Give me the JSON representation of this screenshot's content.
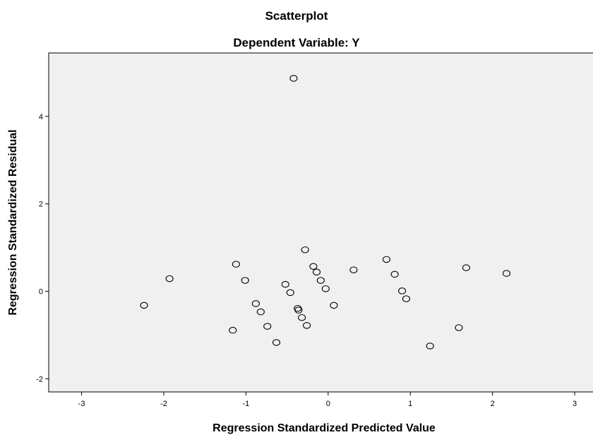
{
  "chart_data": {
    "type": "scatter",
    "title": "Scatterplot",
    "subtitle": "Dependent Variable: Y",
    "xlabel": "Regression Standardized Predicted Value",
    "ylabel": "Regression Standardized Residual",
    "xlim": [
      -3.4,
      3.3
    ],
    "ylim": [
      -2.3,
      5.45
    ],
    "xticks": [
      -3,
      -2,
      -1,
      0,
      1,
      2,
      3
    ],
    "yticks": [
      -2,
      0,
      2,
      4
    ],
    "grid": false,
    "background_color": "#f0f0f0",
    "marker": "hollow-circle",
    "points": [
      {
        "x": -0.42,
        "y": 4.87
      },
      {
        "x": -0.28,
        "y": 0.95
      },
      {
        "x": -1.12,
        "y": 0.62
      },
      {
        "x": 0.71,
        "y": 0.73
      },
      {
        "x": 1.68,
        "y": 0.54
      },
      {
        "x": -0.18,
        "y": 0.57
      },
      {
        "x": -0.14,
        "y": 0.44
      },
      {
        "x": 0.31,
        "y": 0.49
      },
      {
        "x": 0.81,
        "y": 0.39
      },
      {
        "x": 2.17,
        "y": 0.41
      },
      {
        "x": -1.93,
        "y": 0.29
      },
      {
        "x": -1.01,
        "y": 0.25
      },
      {
        "x": -0.09,
        "y": 0.25
      },
      {
        "x": -0.52,
        "y": 0.16
      },
      {
        "x": -0.03,
        "y": 0.06
      },
      {
        "x": -0.46,
        "y": -0.03
      },
      {
        "x": 0.9,
        "y": 0.01
      },
      {
        "x": 0.95,
        "y": -0.17
      },
      {
        "x": -2.24,
        "y": -0.32
      },
      {
        "x": -0.88,
        "y": -0.28
      },
      {
        "x": 0.07,
        "y": -0.32
      },
      {
        "x": -0.82,
        "y": -0.47
      },
      {
        "x": -0.37,
        "y": -0.39
      },
      {
        "x": -0.36,
        "y": -0.43
      },
      {
        "x": -0.32,
        "y": -0.6
      },
      {
        "x": -0.74,
        "y": -0.8
      },
      {
        "x": -0.26,
        "y": -0.78
      },
      {
        "x": 1.59,
        "y": -0.83
      },
      {
        "x": -1.16,
        "y": -0.89
      },
      {
        "x": -0.63,
        "y": -1.17
      },
      {
        "x": 1.24,
        "y": -1.25
      }
    ]
  }
}
